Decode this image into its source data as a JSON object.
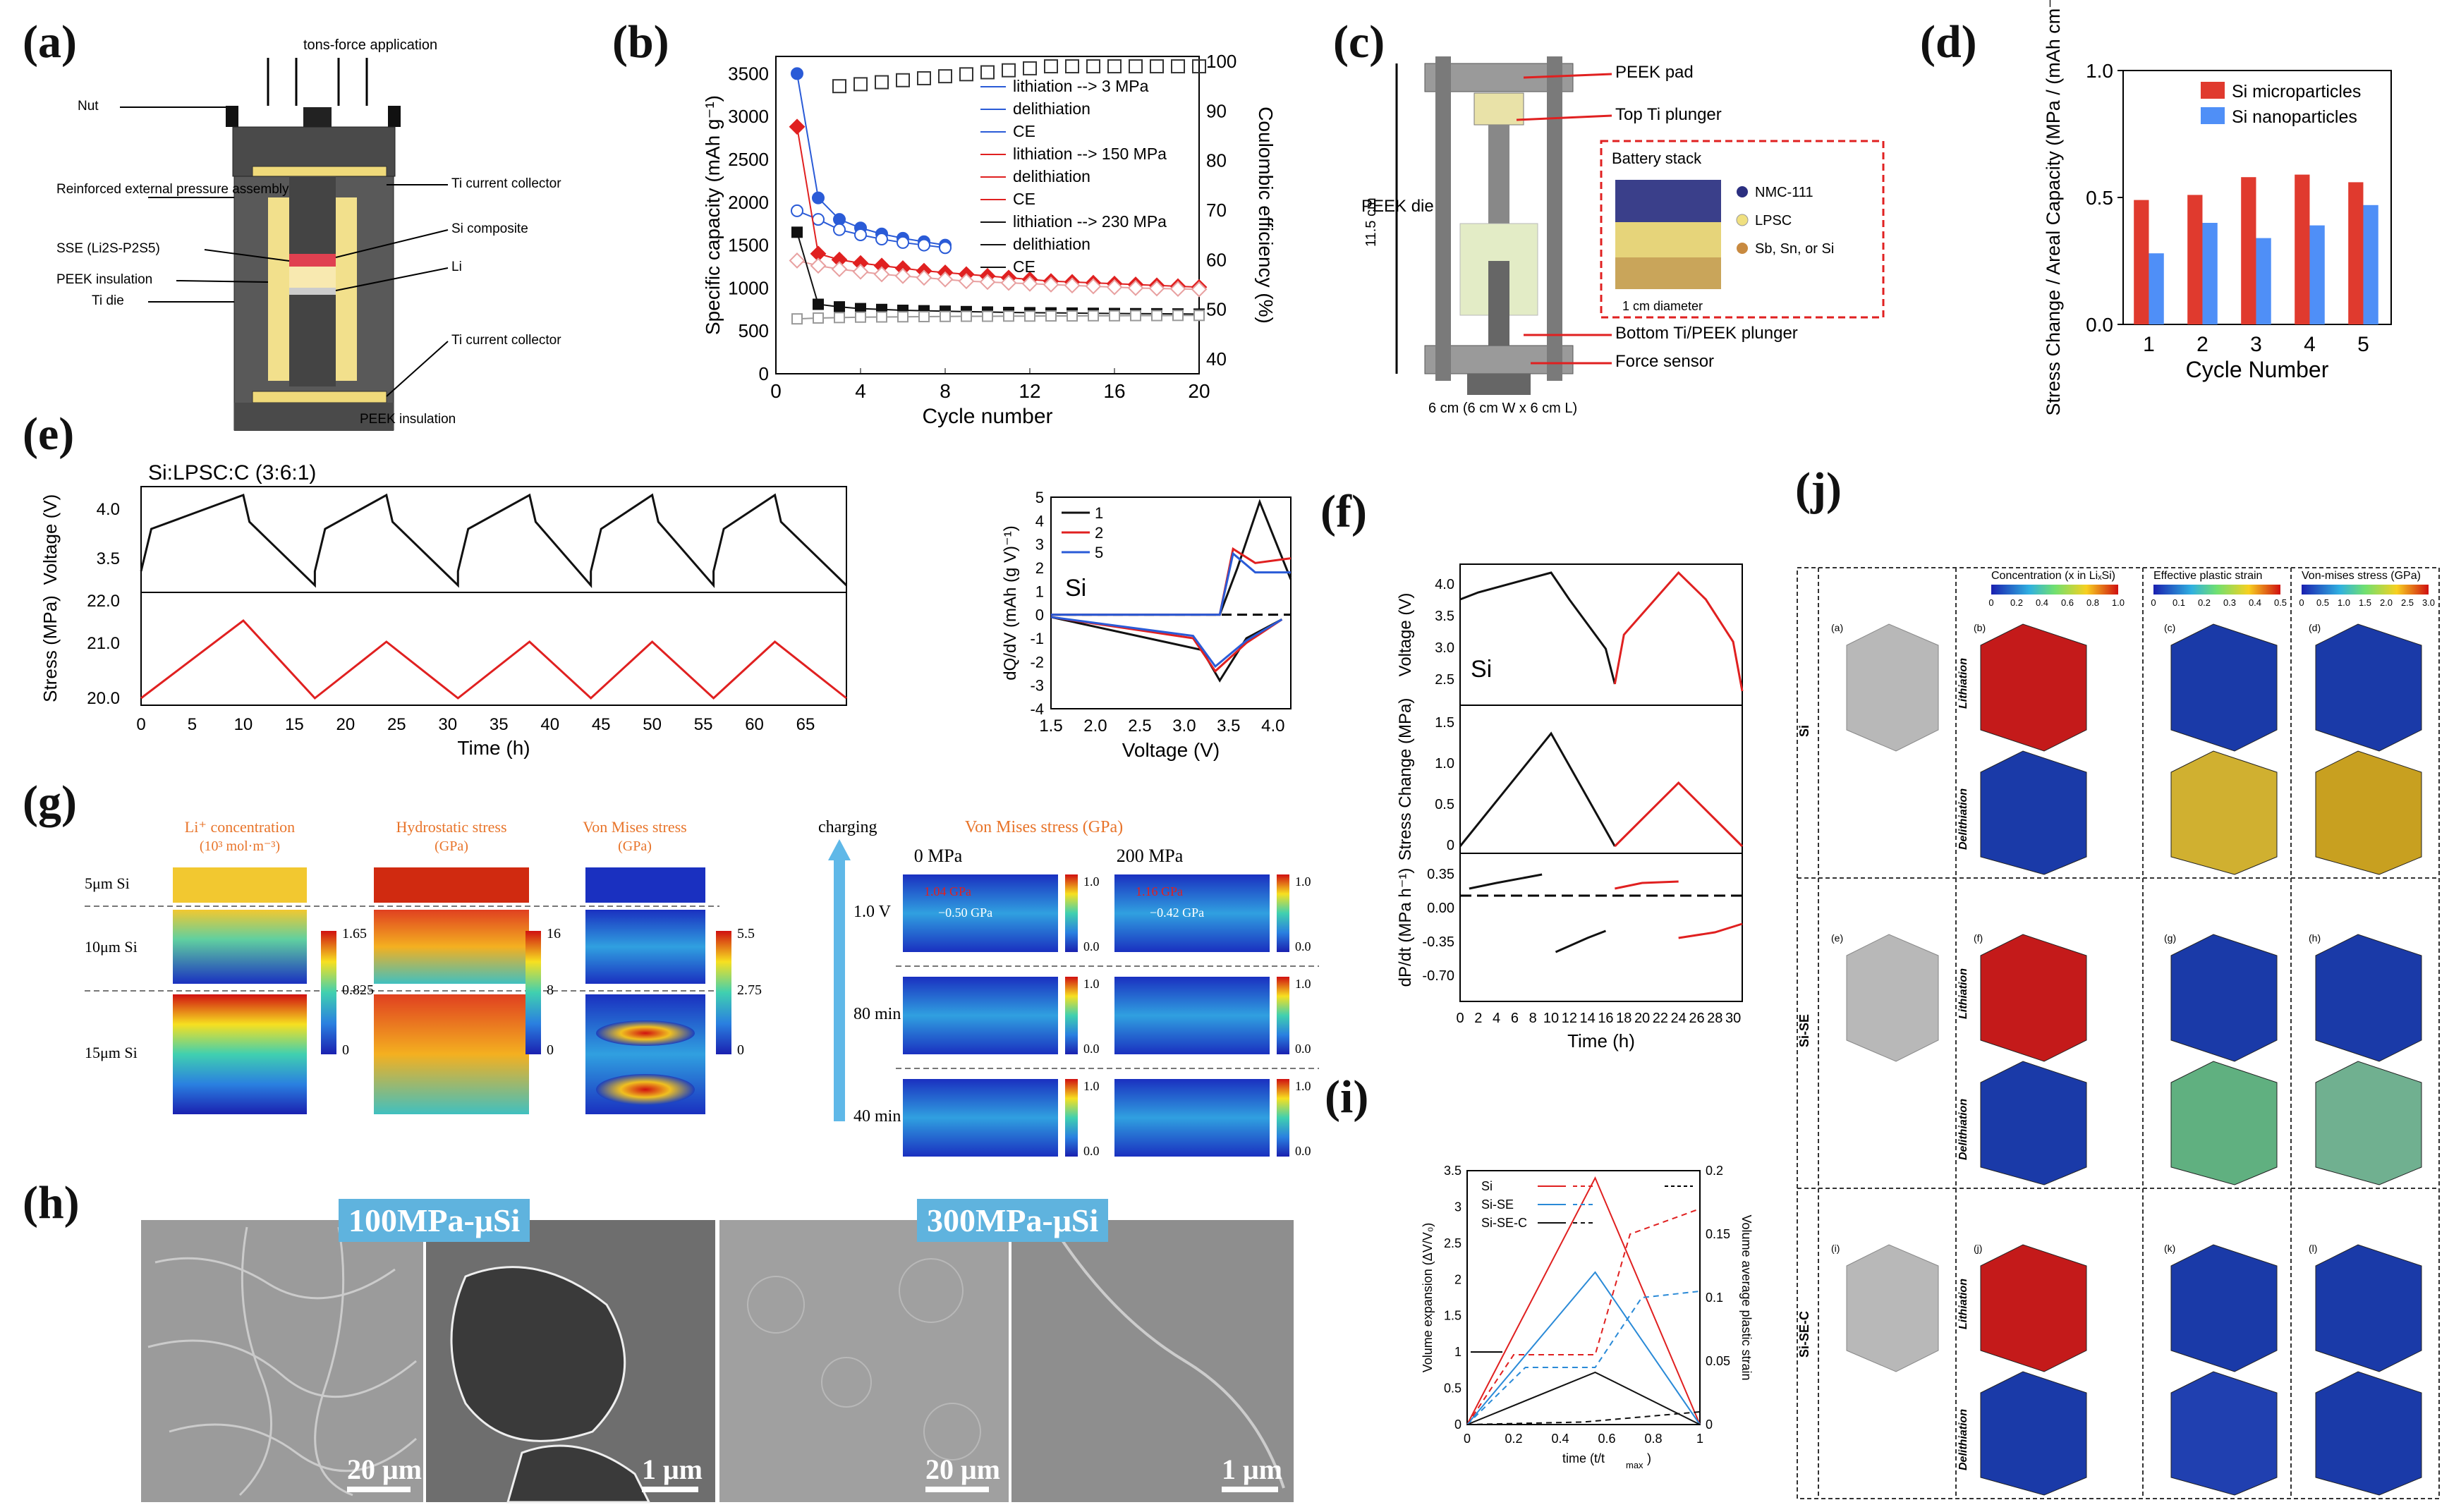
{
  "panels": {
    "a": "(a)",
    "b": "(b)",
    "c": "(c)",
    "d": "(d)",
    "e": "(e)",
    "f": "(f)",
    "g": "(g)",
    "h": "(h)",
    "i": "(i)",
    "j": "(j)"
  },
  "a": {
    "top_label": "tons-force application",
    "left_labels": [
      "Nut",
      "Reinforced external pressure assembly",
      "SSE (Li2S-P2S5)",
      "PEEK insulation",
      "Ti die"
    ],
    "right_labels": [
      "Ti current collector",
      "Si composite",
      "Li",
      "Ti current collector"
    ],
    "bottom_label": "PEEK insulation"
  },
  "b": {
    "xlabel": "Cycle number",
    "ylabel": "Specific capacity (mAh g⁻¹)",
    "y2label": "Coulombic efficiency (%)",
    "xticks": [
      "0",
      "4",
      "8",
      "12",
      "16",
      "20"
    ],
    "yticks": [
      "0",
      "500",
      "1000",
      "1500",
      "2000",
      "2500",
      "3000",
      "3500"
    ],
    "y2ticks": [
      "40",
      "50",
      "60",
      "70",
      "80",
      "90",
      "100"
    ],
    "legend": [
      "lithiation --> 3 MPa",
      "delithiation",
      "CE",
      "lithiation --> 150 MPa",
      "delithiation",
      "CE",
      "lithiation --> 230 MPa",
      "delithiation",
      "CE"
    ]
  },
  "c": {
    "labels": [
      "PEEK pad",
      "Top Ti plunger",
      "PEEK die",
      "Bottom Ti/PEEK plunger",
      "Force sensor"
    ],
    "stack_title": "Battery stack",
    "stack_legend": [
      "NMC-111",
      "LPSC",
      "Sb, Sn, or Si"
    ],
    "diameter": "1 cm diameter",
    "height": "11.5 cm",
    "width": "6 cm (6 cm W x 6 cm L)"
  },
  "d": {
    "xlabel": "Cycle Number",
    "ylabel": "Stress Change / Areal Capacity (MPa / (mAh cm⁻²))",
    "legend": [
      "Si microparticles",
      "Si nanoparticles"
    ],
    "yticks": [
      "0.0",
      "0.5",
      "1.0"
    ]
  },
  "e": {
    "title": "Si:LPSC:C (3:6:1)",
    "xlabel": "Time (h)",
    "ylabel_top": "Voltage (V)",
    "ylabel_bottom": "Stress (MPa)",
    "xticks": [
      "0",
      "5",
      "10",
      "15",
      "20",
      "25",
      "30",
      "35",
      "40",
      "45",
      "50",
      "55",
      "60",
      "65"
    ],
    "vticks": [
      "3.5",
      "4.0"
    ],
    "sticks": [
      "20.0",
      "21.0",
      "22.0"
    ],
    "dq_xlabel": "Voltage (V)",
    "dq_ylabel": "dQ/dV (mAh (g V)⁻¹)",
    "dq_label": "Si",
    "dq_xticks": [
      "1.5",
      "2.0",
      "2.5",
      "3.0",
      "3.5",
      "4.0"
    ],
    "dq_yticks": [
      "-4",
      "-3",
      "-2",
      "-1",
      "0",
      "1",
      "2",
      "3",
      "4",
      "5"
    ],
    "dq_legend": [
      "1",
      "2",
      "5"
    ]
  },
  "f": {
    "label": "Si",
    "xlabel": "Time (h)",
    "ylabels": [
      "Voltage (V)",
      "Stress Change (MPa)",
      "dP/dt (MPa h⁻¹)"
    ],
    "xticks": [
      "0",
      "2",
      "4",
      "6",
      "8",
      "10",
      "12",
      "14",
      "16",
      "18",
      "20",
      "22",
      "24",
      "26",
      "28",
      "30"
    ],
    "vticks": [
      "2.5",
      "3.0",
      "3.5",
      "4.0"
    ],
    "sticks": [
      "0",
      "0.5",
      "1.0",
      "1.5"
    ],
    "rticks": [
      "-0.70",
      "-0.35",
      "0.00",
      "0.35"
    ]
  },
  "g": {
    "headers": [
      "Li⁺ concentration",
      "(10³ mol·m⁻³)",
      "Hydrostatic stress",
      "(GPa)",
      "Von Mises stress",
      "(GPa)"
    ],
    "rows": [
      "5μm Si",
      "10μm Si",
      "15μm Si"
    ],
    "cb1": [
      "1.65",
      "0.825",
      "0"
    ],
    "cb2": [
      "16",
      "8",
      "0"
    ],
    "cb3": [
      "5.5",
      "2.75",
      "0"
    ],
    "right_title": "Von Mises stress (GPa)",
    "cols": [
      "0 MPa",
      "200 MPa"
    ],
    "charging": "charging",
    "times": [
      "1.0 V",
      "80 min",
      "40 min"
    ],
    "annot": [
      "1.04 GPa",
      "−0.50 GPa",
      "1.16 GPa",
      "−0.42 GPa"
    ],
    "cb_ticks": [
      "1.0",
      "0.0"
    ]
  },
  "h": {
    "tags": [
      "100MPa-μSi",
      "300MPa-μSi"
    ],
    "scales": [
      "20 μm",
      "1 μm",
      "20 μm",
      "1 μm"
    ]
  },
  "i": {
    "xlabel": "time (t/t",
    "xsub": "max",
    "ylabel": "Volume expansion (ΔV/V₀)",
    "y2label": "Volume average plastic strain",
    "legend": [
      "Si",
      "Si-SE",
      "Si-SE-C"
    ],
    "xticks": [
      "0",
      "0.2",
      "0.4",
      "0.6",
      "0.8",
      "1"
    ],
    "yticks": [
      "0",
      "0.5",
      "1",
      "1.5",
      "2",
      "2.5",
      "3",
      "3.5"
    ],
    "y2ticks": [
      "0",
      "0.05",
      "0.1",
      "0.15",
      "0.2"
    ]
  },
  "j": {
    "headers": [
      "Concentration (x in LiₓSi)",
      "Effective plastic strain",
      "Von-mises stress (GPa)"
    ],
    "cb_ticks": [
      [
        "0",
        "0.2",
        "0.4",
        "0.6",
        "0.8",
        "1.0"
      ],
      [
        "0",
        "0.1",
        "0.2",
        "0.3",
        "0.4",
        "0.5"
      ],
      [
        "0",
        "0.5",
        "1.0",
        "1.5",
        "2.0",
        "2.5",
        "3.0"
      ]
    ],
    "rows": [
      "Si",
      "Si-SE",
      "Si-SE-C"
    ],
    "states": [
      "Lithiation",
      "Delithiation"
    ],
    "sub": [
      "(a)",
      "(b)",
      "(c)",
      "(d)",
      "(e)",
      "(f)",
      "(g)",
      "(h)",
      "(i)",
      "(j)",
      "(k)",
      "(l)"
    ]
  },
  "colors": {
    "blue": "#2a5bd7",
    "red": "#e02020",
    "black": "#111111",
    "bar_red": "#e03a2e",
    "bar_blue": "#4f8ff7"
  },
  "chart_data": [
    {
      "type": "bar",
      "title": "(d)",
      "categories": [
        "1",
        "2",
        "3",
        "4",
        "5"
      ],
      "series": [
        {
          "name": "Si microparticles",
          "values": [
            0.49,
            0.51,
            0.58,
            0.59,
            0.56
          ]
        },
        {
          "name": "Si nanoparticles",
          "values": [
            0.28,
            0.4,
            0.34,
            0.39,
            0.47
          ]
        }
      ],
      "xlabel": "Cycle Number",
      "ylabel": "Stress Change / Areal Capacity (MPa / (mAh cm⁻²))",
      "ylim": [
        0,
        1.0
      ]
    },
    {
      "type": "scatter",
      "title": "(b)",
      "xlabel": "Cycle number",
      "ylabel": "Specific capacity (mAh g⁻¹)",
      "xlim": [
        0,
        20
      ],
      "ylim": [
        0,
        3700
      ],
      "series": [
        {
          "name": "lithiation --> 3 MPa",
          "x": [
            1,
            2,
            3,
            4,
            5,
            6,
            7,
            8
          ],
          "y": [
            3500,
            2050,
            1800,
            1700,
            1630,
            1580,
            1540,
            1500
          ]
        },
        {
          "name": "delithiation (3 MPa)",
          "x": [
            1,
            2,
            3,
            4,
            5,
            6,
            7,
            8
          ],
          "y": [
            1900,
            1800,
            1680,
            1620,
            1570,
            1530,
            1500,
            1470
          ]
        },
        {
          "name": "lithiation --> 150 MPa",
          "x": [
            1,
            2,
            3,
            4,
            5,
            6,
            7,
            8,
            9,
            10,
            11,
            12,
            13,
            14,
            15,
            16,
            17,
            18,
            19,
            20
          ],
          "y": [
            2880,
            1400,
            1330,
            1290,
            1260,
            1230,
            1200,
            1180,
            1160,
            1140,
            1120,
            1100,
            1080,
            1070,
            1060,
            1050,
            1040,
            1030,
            1020,
            1010
          ]
        },
        {
          "name": "delithiation (150 MPa)",
          "x": [
            1,
            2,
            3,
            4,
            5,
            6,
            7,
            8,
            9,
            10,
            11,
            12,
            13,
            14,
            15,
            16,
            17,
            18,
            19,
            20
          ],
          "y": [
            1320,
            1260,
            1220,
            1190,
            1160,
            1140,
            1120,
            1100,
            1080,
            1070,
            1060,
            1050,
            1040,
            1030,
            1020,
            1010,
            1000,
            995,
            990,
            985
          ]
        },
        {
          "name": "lithiation --> 230 MPa",
          "x": [
            1,
            2,
            3,
            4,
            5,
            6,
            7,
            8,
            9,
            10,
            11,
            12,
            13,
            14,
            15,
            16,
            17,
            18,
            19,
            20
          ],
          "y": [
            1650,
            810,
            780,
            760,
            750,
            740,
            735,
            730,
            725,
            720,
            715,
            712,
            710,
            708,
            705,
            703,
            701,
            700,
            698,
            696
          ]
        },
        {
          "name": "delithiation (230 MPa)",
          "x": [
            1,
            2,
            3,
            4,
            5,
            6,
            7,
            8,
            9,
            10,
            11,
            12,
            13,
            14,
            15,
            16,
            17,
            18,
            19,
            20
          ],
          "y": [
            640,
            650,
            655,
            660,
            662,
            664,
            666,
            668,
            670,
            670,
            672,
            672,
            674,
            674,
            676,
            676,
            678,
            678,
            680,
            680
          ]
        }
      ]
    },
    {
      "type": "line",
      "title": "(i)",
      "xlabel": "time (t/tmax)",
      "ylabel": "Volume expansion",
      "xlim": [
        0,
        1
      ],
      "ylim": [
        0,
        3.5
      ],
      "series": [
        {
          "name": "Si",
          "x": [
            0,
            0.55,
            1
          ],
          "y": [
            0,
            3.4,
            0
          ]
        },
        {
          "name": "Si-SE",
          "x": [
            0,
            0.55,
            1
          ],
          "y": [
            0,
            2.1,
            0
          ]
        },
        {
          "name": "Si-SE-C",
          "x": [
            0,
            0.55,
            1
          ],
          "y": [
            0,
            0.72,
            0
          ]
        }
      ]
    }
  ]
}
